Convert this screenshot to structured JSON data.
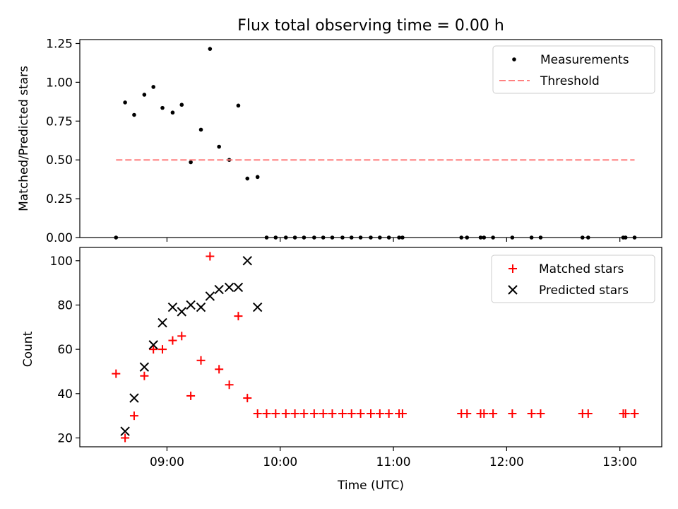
{
  "figure_title": "Flux total observing time = 0.00 h",
  "colors": {
    "measurement": "#000000",
    "threshold": "#ff8080",
    "matched": "#ff0000",
    "predicted": "#000000",
    "axes": "#000000"
  },
  "chart_data": [
    {
      "type": "scatter",
      "title": "Flux total observing time = 0.00 h",
      "xlabel": "",
      "ylabel": "Matched/Predicted stars",
      "xlim": [
        8.23,
        13.37
      ],
      "ylim": [
        0,
        1.275
      ],
      "yticks": [
        0.0,
        0.25,
        0.5,
        0.75,
        1.0,
        1.25
      ],
      "ytick_labels": [
        "0.00",
        "0.25",
        "0.50",
        "0.75",
        "1.00",
        "1.25"
      ],
      "xticks": [
        9,
        10,
        11,
        12,
        13
      ],
      "show_xtick_labels": false,
      "legend": {
        "position": "top-right",
        "entries": [
          "Measurements",
          "Threshold"
        ]
      },
      "series": [
        {
          "name": "Measurements",
          "kind": "dot",
          "x": [
            8.55,
            8.63,
            8.71,
            8.8,
            8.88,
            8.96,
            9.05,
            9.13,
            9.21,
            9.3,
            9.38,
            9.46,
            9.55,
            9.63,
            9.71,
            9.8,
            9.88,
            9.96,
            10.05,
            10.13,
            10.21,
            10.3,
            10.38,
            10.46,
            10.55,
            10.63,
            10.71,
            10.8,
            10.88,
            10.96,
            11.05,
            11.08,
            11.6,
            11.65,
            11.77,
            11.8,
            11.88,
            12.05,
            12.22,
            12.3,
            12.67,
            12.72,
            13.03,
            13.05,
            13.13
          ],
          "y": [
            0.0,
            0.87,
            0.79,
            0.92,
            0.97,
            0.835,
            0.805,
            0.855,
            0.485,
            0.695,
            1.215,
            0.585,
            0.5,
            0.85,
            0.38,
            0.39,
            0,
            0,
            0,
            0,
            0,
            0,
            0,
            0,
            0,
            0,
            0,
            0,
            0,
            0,
            0,
            0,
            0,
            0,
            0,
            0,
            0,
            0,
            0,
            0,
            0,
            0,
            0,
            0,
            0
          ]
        },
        {
          "name": "Threshold",
          "kind": "dashed-line",
          "x": [
            8.55,
            13.13
          ],
          "y": [
            0.5,
            0.5
          ]
        }
      ]
    },
    {
      "type": "scatter",
      "title": "",
      "xlabel": "Time (UTC)",
      "ylabel": "Count",
      "xlim": [
        8.23,
        13.37
      ],
      "ylim": [
        16,
        106
      ],
      "yticks": [
        20,
        40,
        60,
        80,
        100
      ],
      "ytick_labels": [
        "20",
        "40",
        "60",
        "80",
        "100"
      ],
      "xticks": [
        9,
        10,
        11,
        12,
        13
      ],
      "xtick_labels": [
        "09:00",
        "10:00",
        "11:00",
        "12:00",
        "13:00"
      ],
      "legend": {
        "position": "top-right",
        "entries": [
          "Matched stars",
          "Predicted stars"
        ]
      },
      "series": [
        {
          "name": "Matched stars",
          "kind": "plus",
          "x": [
            8.55,
            8.63,
            8.71,
            8.8,
            8.88,
            8.96,
            9.05,
            9.13,
            9.21,
            9.3,
            9.38,
            9.46,
            9.55,
            9.63,
            9.71,
            9.8,
            9.88,
            9.96,
            10.05,
            10.13,
            10.21,
            10.3,
            10.38,
            10.46,
            10.55,
            10.63,
            10.71,
            10.8,
            10.88,
            10.96,
            11.05,
            11.08,
            11.6,
            11.65,
            11.77,
            11.8,
            11.88,
            12.05,
            12.22,
            12.3,
            12.67,
            12.72,
            13.03,
            13.05,
            13.13
          ],
          "y": [
            49,
            20,
            30,
            48,
            60,
            60,
            64,
            66,
            39,
            55,
            102,
            51,
            44,
            75,
            38,
            31,
            31,
            31,
            31,
            31,
            31,
            31,
            31,
            31,
            31,
            31,
            31,
            31,
            31,
            31,
            31,
            31,
            31,
            31,
            31,
            31,
            31,
            31,
            31,
            31,
            31,
            31,
            31,
            31,
            31
          ]
        },
        {
          "name": "Predicted stars",
          "kind": "x",
          "x": [
            8.63,
            8.71,
            8.8,
            8.88,
            8.96,
            9.05,
            9.13,
            9.21,
            9.3,
            9.38,
            9.46,
            9.55,
            9.63,
            9.71,
            9.8
          ],
          "y": [
            23,
            38,
            52,
            62,
            72,
            79,
            77,
            80,
            79,
            84,
            87,
            88,
            88,
            100,
            79
          ]
        }
      ]
    }
  ]
}
